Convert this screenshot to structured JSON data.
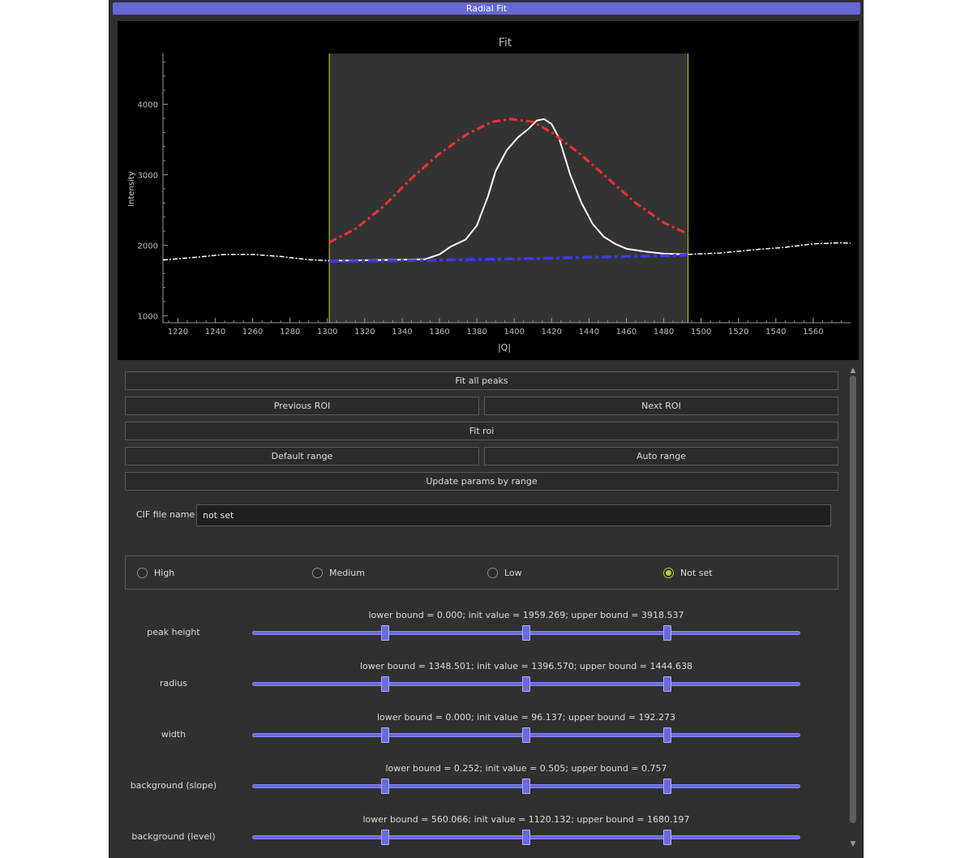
{
  "window": {
    "title": "Radial Fit"
  },
  "plot": {
    "title": "Fit",
    "xlabel": "|Q|",
    "ylabel": "Intensity"
  },
  "chart_data": {
    "type": "line",
    "title": "Fit",
    "xlabel": "|Q|",
    "ylabel": "Intensity",
    "xlim": [
      1212,
      1580
    ],
    "ylim": [
      900,
      4720
    ],
    "x_ticks": [
      1220,
      1240,
      1260,
      1280,
      1300,
      1320,
      1340,
      1360,
      1380,
      1400,
      1420,
      1440,
      1460,
      1480,
      1500,
      1520,
      1540,
      1560
    ],
    "y_ticks": [
      1000,
      2000,
      3000,
      4000
    ],
    "roi": {
      "x_min": 1301,
      "x_max": 1493
    },
    "series": [
      {
        "style": "white-solid",
        "color": "#ffffff",
        "points": [
          [
            1301,
            1780
          ],
          [
            1330,
            1790
          ],
          [
            1352,
            1800
          ],
          [
            1360,
            1870
          ],
          [
            1366,
            1980
          ],
          [
            1374,
            2080
          ],
          [
            1380,
            2280
          ],
          [
            1386,
            2700
          ],
          [
            1390,
            3050
          ],
          [
            1396,
            3350
          ],
          [
            1402,
            3530
          ],
          [
            1408,
            3660
          ],
          [
            1412,
            3770
          ],
          [
            1416,
            3790
          ],
          [
            1420,
            3720
          ],
          [
            1424,
            3520
          ],
          [
            1430,
            3000
          ],
          [
            1436,
            2600
          ],
          [
            1442,
            2300
          ],
          [
            1448,
            2120
          ],
          [
            1454,
            2020
          ],
          [
            1460,
            1950
          ],
          [
            1470,
            1910
          ],
          [
            1480,
            1880
          ],
          [
            1493,
            1870
          ]
        ]
      },
      {
        "style": "white-dashed",
        "color": "#ffffff",
        "points": [
          [
            1212,
            1790
          ],
          [
            1230,
            1830
          ],
          [
            1245,
            1870
          ],
          [
            1260,
            1870
          ],
          [
            1275,
            1840
          ],
          [
            1290,
            1795
          ],
          [
            1301,
            1780
          ],
          [
            1493,
            1870
          ],
          [
            1510,
            1890
          ],
          [
            1530,
            1940
          ],
          [
            1545,
            1970
          ],
          [
            1560,
            2020
          ],
          [
            1575,
            2035
          ],
          [
            1580,
            2030
          ]
        ]
      },
      {
        "style": "red-dashed",
        "color": "#ee3030",
        "points": [
          [
            1301,
            2040
          ],
          [
            1315,
            2230
          ],
          [
            1330,
            2550
          ],
          [
            1345,
            2950
          ],
          [
            1360,
            3300
          ],
          [
            1375,
            3580
          ],
          [
            1388,
            3750
          ],
          [
            1398,
            3790
          ],
          [
            1410,
            3750
          ],
          [
            1420,
            3600
          ],
          [
            1435,
            3300
          ],
          [
            1450,
            2950
          ],
          [
            1465,
            2600
          ],
          [
            1480,
            2320
          ],
          [
            1493,
            2160
          ]
        ]
      },
      {
        "style": "blue-dashed",
        "color": "#3a3aee",
        "points": [
          [
            1301,
            1770
          ],
          [
            1350,
            1785
          ],
          [
            1400,
            1805
          ],
          [
            1450,
            1835
          ],
          [
            1493,
            1860
          ]
        ]
      }
    ]
  },
  "buttons": {
    "fit_all_peaks": "Fit all peaks",
    "previous_roi": "Previous ROI",
    "next_roi": "Next ROI",
    "fit_roi": "Fit roi",
    "default_range": "Default range",
    "auto_range": "Auto range",
    "update_params": "Update params by range"
  },
  "cif": {
    "label": "CIF file name",
    "value": "not set"
  },
  "quality": {
    "options": [
      "High",
      "Medium",
      "Low",
      "Not set"
    ],
    "selected": "Not set"
  },
  "params": [
    {
      "name": "peak height",
      "bounds": "lower bound = 0.000; init value = 1959.269; upper bound = 3918.537",
      "handles": [
        0.243,
        0.5,
        0.757
      ]
    },
    {
      "name": "radius",
      "bounds": "lower bound = 1348.501; init value = 1396.570; upper bound = 1444.638",
      "handles": [
        0.243,
        0.5,
        0.757
      ]
    },
    {
      "name": "width",
      "bounds": "lower bound = 0.000; init value = 96.137; upper bound = 192.273",
      "handles": [
        0.243,
        0.5,
        0.757
      ]
    },
    {
      "name": "background (slope)",
      "bounds": "lower bound = 0.252; init value = 0.505; upper bound = 0.757",
      "handles": [
        0.243,
        0.5,
        0.757
      ]
    },
    {
      "name": "background (level)",
      "bounds": "lower bound = 560.066; init value = 1120.132; upper bound = 1680.197",
      "handles": [
        0.243,
        0.5,
        0.757
      ]
    }
  ],
  "colors": {
    "window_bg": "#303030",
    "titlebar": "#6666d6",
    "plot_bg": "#000000",
    "roi_fill": "#333333",
    "roi_line": "#c8c832",
    "slider": "#6a6ae0",
    "radio_checked": "#b3d23c"
  }
}
